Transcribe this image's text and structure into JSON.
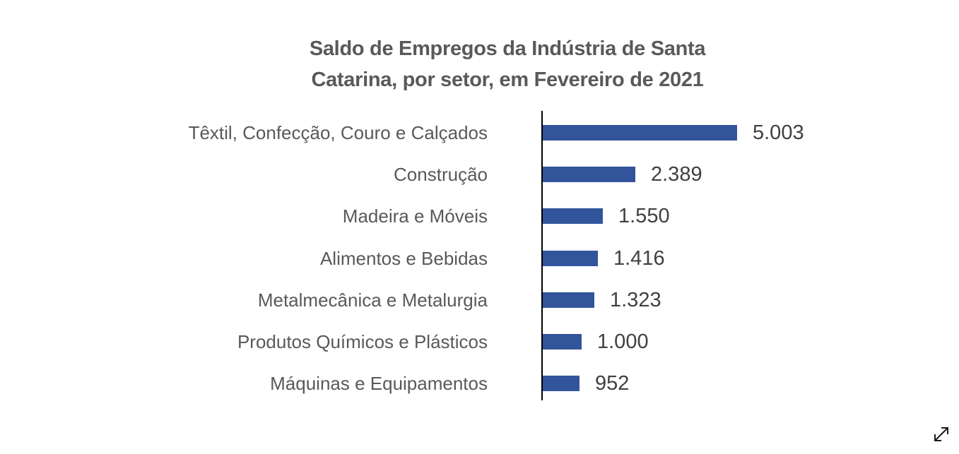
{
  "title": {
    "line1": "Saldo de Empregos da Indústria de Santa",
    "line2": "Catarina, por setor, em Fevereiro de 2021"
  },
  "chart_data": {
    "type": "bar",
    "orientation": "horizontal",
    "title": "Saldo de Empregos da Indústria de Santa Catarina, por setor, em Fevereiro de 2021",
    "categories": [
      "Têxtil, Confecção, Couro e Calçados",
      "Construção",
      "Madeira e Móveis",
      "Alimentos e Bebidas",
      "Metalmecânica e Metalurgia",
      "Produtos Químicos e Plásticos",
      "Máquinas e Equipamentos"
    ],
    "values": [
      5003,
      2389,
      1550,
      1416,
      1323,
      1000,
      952
    ],
    "value_labels": [
      "5.003",
      "2.389",
      "1.550",
      "1.416",
      "1.323",
      "1.000",
      "952"
    ],
    "xlim": [
      0,
      5003
    ],
    "grid": false,
    "legend": false,
    "data_labels": true,
    "bar_color": "#32549B",
    "axis_color": "#000000",
    "title_color": "#595959",
    "category_label_color": "#595959",
    "value_label_color": "#404040"
  },
  "controls": {
    "expand_icon": "diagonal-resize-arrow"
  }
}
